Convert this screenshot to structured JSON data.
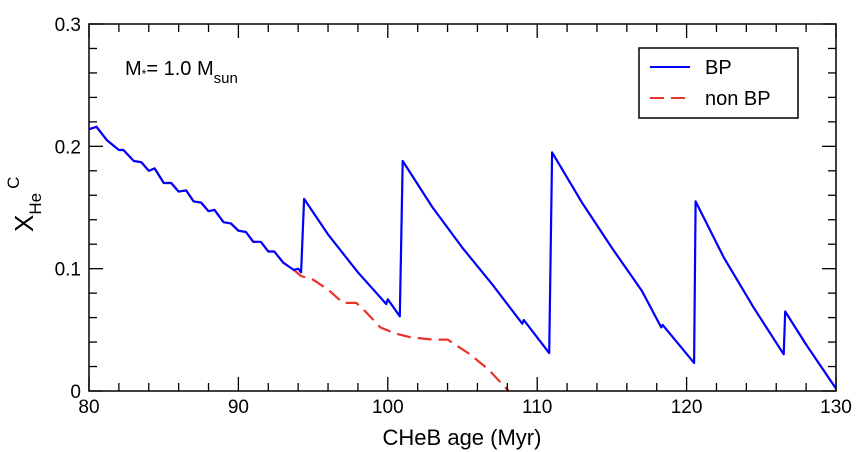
{
  "chart_data": {
    "type": "line",
    "xlabel": "CHeB age (Myr)",
    "ylabel": {
      "main": "X",
      "sub": "He",
      "sup": "C"
    },
    "xlim": [
      80,
      130
    ],
    "ylim": [
      0,
      0.3
    ],
    "xticks": [
      "80",
      "90",
      "100",
      "110",
      "120",
      "130"
    ],
    "yticks": [
      "0",
      "0.1",
      "0.2",
      "0.3"
    ],
    "grid": false,
    "legend_position": "top-right",
    "annotation": {
      "main": "M",
      "star": "*",
      "eq": "= 1.0 M",
      "sub": "sun"
    },
    "series": [
      {
        "name": "BP",
        "color": "#0000ff",
        "style": "solid",
        "x": [
          80,
          80.5,
          81.2,
          82,
          82.3,
          83,
          83.5,
          84,
          84.4,
          85,
          85.5,
          86,
          86.5,
          87,
          87.5,
          88,
          88.4,
          89,
          89.5,
          90,
          90.5,
          91,
          91.5,
          92,
          92.4,
          93,
          93.7,
          94,
          94.2,
          94.4,
          96,
          98,
          99.9,
          100,
          100.8,
          101.0,
          103,
          105,
          107,
          109.0,
          109.1,
          110.8,
          111.0,
          113,
          115,
          117,
          118.3,
          118.4,
          120.5,
          120.6,
          122.5,
          124.5,
          126.5,
          126.6,
          128,
          130
        ],
        "y": [
          0.214,
          0.216,
          0.205,
          0.197,
          0.197,
          0.188,
          0.187,
          0.18,
          0.182,
          0.17,
          0.17,
          0.163,
          0.164,
          0.155,
          0.154,
          0.147,
          0.148,
          0.138,
          0.137,
          0.131,
          0.13,
          0.122,
          0.122,
          0.114,
          0.114,
          0.105,
          0.099,
          0.1,
          0.097,
          0.157,
          0.128,
          0.097,
          0.071,
          0.075,
          0.061,
          0.188,
          0.15,
          0.117,
          0.087,
          0.055,
          0.058,
          0.031,
          0.195,
          0.154,
          0.117,
          0.082,
          0.052,
          0.054,
          0.023,
          0.155,
          0.109,
          0.068,
          0.03,
          0.065,
          0.038,
          0.002
        ]
      },
      {
        "name": "non BP",
        "color": "#e8332a",
        "style": "dashed",
        "x": [
          80,
          80.5,
          81.2,
          82,
          82.3,
          83,
          83.5,
          84,
          84.4,
          85,
          85.5,
          86,
          86.5,
          87,
          87.5,
          88,
          88.4,
          89,
          89.5,
          90,
          90.5,
          91,
          91.5,
          92,
          92.4,
          93,
          93.7,
          94.2,
          95.0,
          96,
          97,
          97.9,
          98.5,
          99.5,
          100.5,
          101.5,
          103,
          104.0,
          105.5,
          106.7,
          108.1
        ],
        "y": [
          0.214,
          0.216,
          0.205,
          0.197,
          0.197,
          0.188,
          0.187,
          0.18,
          0.182,
          0.17,
          0.17,
          0.163,
          0.164,
          0.155,
          0.154,
          0.147,
          0.148,
          0.138,
          0.137,
          0.131,
          0.13,
          0.122,
          0.122,
          0.114,
          0.114,
          0.105,
          0.099,
          0.094,
          0.091,
          0.083,
          0.072,
          0.072,
          0.065,
          0.052,
          0.047,
          0.044,
          0.042,
          0.042,
          0.03,
          0.018,
          0.0
        ]
      }
    ]
  }
}
